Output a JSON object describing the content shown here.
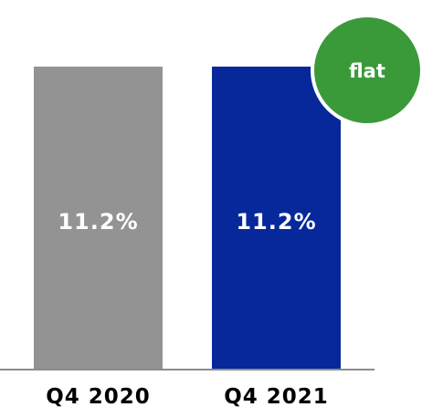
{
  "chart_data": {
    "type": "bar",
    "categories": [
      "Q4 2020",
      "Q4 2021"
    ],
    "values": [
      11.2,
      11.2
    ],
    "value_labels": [
      "11.2%",
      "11.2%"
    ],
    "bar_colors": [
      "#939393",
      "#06289A"
    ],
    "ylim": [
      0,
      11.2
    ],
    "grid": false,
    "title": "",
    "xlabel": "",
    "ylabel": ""
  },
  "badge": {
    "text": "flat",
    "color": "#3A9A3A",
    "border_color": "#ffffff"
  },
  "axis_color": "#8C8C8C"
}
